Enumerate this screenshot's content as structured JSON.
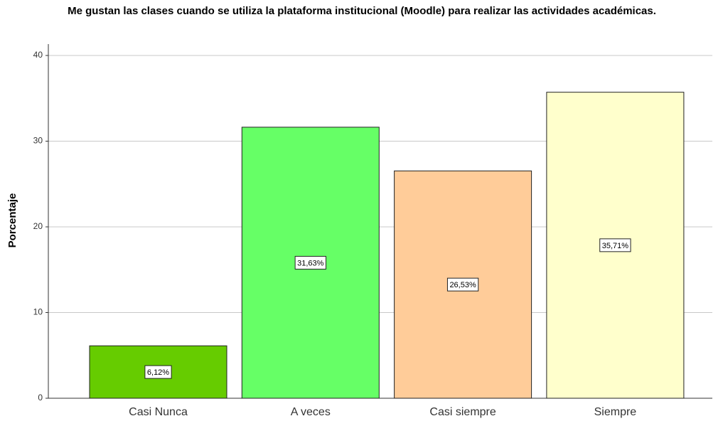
{
  "chart_data": {
    "type": "bar",
    "title": "Me gustan las clases cuando se utiliza la plataforma institucional (Moodle) para realizar las actividades académicas.",
    "y_label": "Porcentaje",
    "categories": [
      "Casi Nunca",
      "A veces",
      "Casi siempre",
      "Siempre"
    ],
    "values": [
      6.12,
      31.63,
      26.53,
      35.71
    ],
    "value_labels": [
      "6,12%",
      "31,63%",
      "26,53%",
      "35,71%"
    ],
    "colors": [
      "#66cc00",
      "#66ff66",
      "#ffcc99",
      "#ffffcc"
    ],
    "ylim": [
      0,
      40
    ],
    "yticks": [
      0,
      10,
      20,
      30,
      40
    ],
    "grid": true
  }
}
